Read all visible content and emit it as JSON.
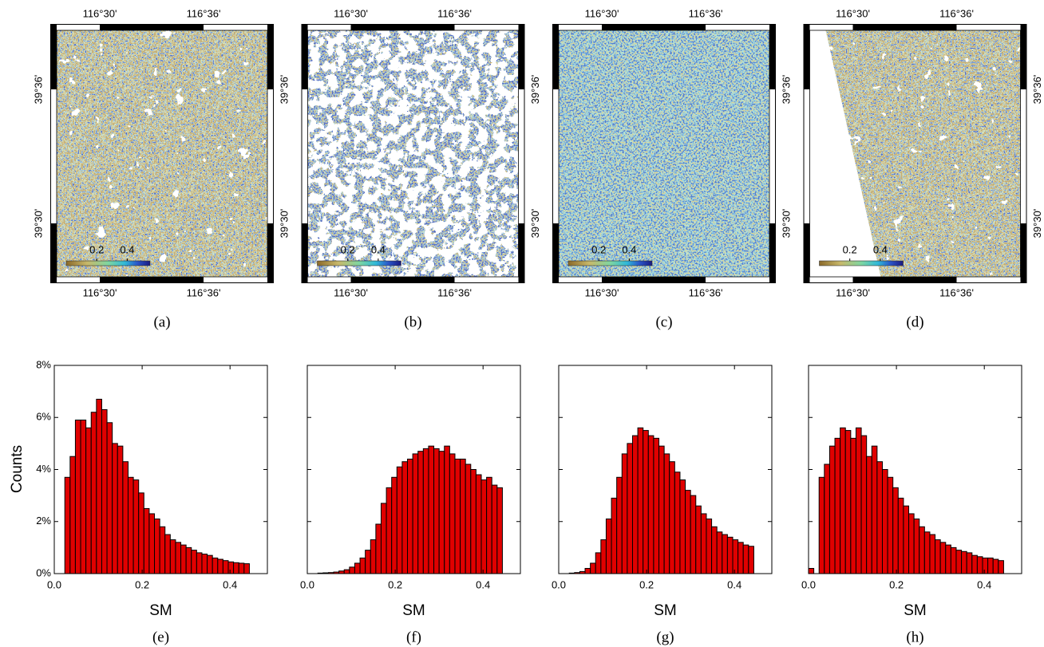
{
  "maps": [
    {
      "caption": "(a)",
      "top_labels": [
        "116°30'",
        "116°36'"
      ],
      "bottom_labels": [
        "116°30'",
        "116°36'"
      ],
      "left_labels": [
        "39°36'",
        "39°30'"
      ],
      "right_labels": [
        "39°36'",
        "39°30'"
      ],
      "colorbar_lim": [
        0,
        0.55
      ],
      "colorbar_ticks": [
        0.2,
        0.4
      ]
    },
    {
      "caption": "(b)",
      "top_labels": [
        "116°30'",
        "116°36'"
      ],
      "bottom_labels": [
        "116°30'",
        "116°36'"
      ],
      "right_labels": [
        "39°36'",
        "39°30'"
      ],
      "colorbar_lim": [
        0,
        0.55
      ],
      "colorbar_ticks": [
        0.2,
        0.4
      ]
    },
    {
      "caption": "(c)",
      "top_labels": [
        "116°30'",
        "116°36'"
      ],
      "bottom_labels": [
        "116°30'",
        "116°36'"
      ],
      "right_labels": [
        "39°36'",
        "39°30'"
      ],
      "colorbar_lim": [
        0,
        0.55
      ],
      "colorbar_ticks": [
        0.2,
        0.4
      ]
    },
    {
      "caption": "(d)",
      "top_labels": [
        "116°30'",
        "116°36'"
      ],
      "bottom_labels": [
        "116°30'",
        "116°36'"
      ],
      "right_labels": [
        "39°36'",
        "39°30'"
      ],
      "colorbar_lim": [
        0,
        0.55
      ],
      "colorbar_ticks": [
        0.2,
        0.4
      ]
    }
  ],
  "chart_data": [
    {
      "type": "histogram",
      "caption": "(e)",
      "x_label": "SM",
      "y_label": "Counts",
      "color": "#e00000",
      "bins": [
        0.024,
        0.036,
        0.048,
        0.06,
        0.072,
        0.084,
        0.096,
        0.108,
        0.12,
        0.132,
        0.144,
        0.156,
        0.168,
        0.18,
        0.192,
        0.204,
        0.216,
        0.228,
        0.24,
        0.252,
        0.264,
        0.276,
        0.288,
        0.3,
        0.312,
        0.324,
        0.336,
        0.348,
        0.36,
        0.372,
        0.384,
        0.396,
        0.408,
        0.42,
        0.432,
        0.444
      ],
      "values": [
        3.7,
        4.5,
        5.9,
        5.9,
        5.6,
        6.2,
        6.7,
        6.3,
        5.8,
        5.0,
        4.9,
        4.3,
        3.7,
        3.6,
        3.1,
        2.5,
        2.3,
        2.1,
        1.8,
        1.5,
        1.3,
        1.2,
        1.1,
        1.0,
        0.9,
        0.8,
        0.75,
        0.7,
        0.6,
        0.55,
        0.5,
        0.45,
        0.42,
        0.4,
        0.38
      ],
      "xlim": [
        0,
        0.485
      ],
      "xticks": [
        {
          "value": 0,
          "label": "0.0"
        },
        0.2,
        0.4
      ],
      "ylim": [
        0,
        8
      ],
      "yticks": [
        {
          "value": 0,
          "label": "0%"
        },
        {
          "value": 2,
          "label": "2%"
        },
        {
          "value": 4,
          "label": "4%"
        },
        {
          "value": 6,
          "label": "6%"
        },
        {
          "value": 8,
          "label": "8%"
        }
      ],
      "ytick_labels": true
    },
    {
      "type": "histogram",
      "caption": "(f)",
      "x_label": "SM",
      "color": "#e00000",
      "bins": [
        0.024,
        0.036,
        0.048,
        0.06,
        0.072,
        0.084,
        0.096,
        0.108,
        0.12,
        0.132,
        0.144,
        0.156,
        0.168,
        0.18,
        0.192,
        0.204,
        0.216,
        0.228,
        0.24,
        0.252,
        0.264,
        0.276,
        0.288,
        0.3,
        0.312,
        0.324,
        0.336,
        0.348,
        0.36,
        0.372,
        0.384,
        0.396,
        0.408,
        0.42,
        0.432,
        0.444
      ],
      "values": [
        0.02,
        0.03,
        0.04,
        0.06,
        0.1,
        0.15,
        0.25,
        0.4,
        0.6,
        0.9,
        1.3,
        1.9,
        2.7,
        3.3,
        3.7,
        4.1,
        4.3,
        4.4,
        4.6,
        4.7,
        4.8,
        4.9,
        4.8,
        4.7,
        4.9,
        4.6,
        4.4,
        4.4,
        4.2,
        4.0,
        3.8,
        3.6,
        3.7,
        3.4,
        3.3
      ],
      "xlim": [
        0,
        0.485
      ],
      "xticks": [
        {
          "value": 0,
          "label": "0.0"
        },
        0.2,
        0.4
      ],
      "ylim": [
        0,
        8
      ],
      "yticks": [
        0,
        2,
        4,
        6,
        8
      ],
      "ytick_labels": false
    },
    {
      "type": "histogram",
      "caption": "(g)",
      "x_label": "SM",
      "color": "#e00000",
      "bins": [
        0.024,
        0.036,
        0.048,
        0.06,
        0.072,
        0.084,
        0.096,
        0.108,
        0.12,
        0.132,
        0.144,
        0.156,
        0.168,
        0.18,
        0.192,
        0.204,
        0.216,
        0.228,
        0.24,
        0.252,
        0.264,
        0.276,
        0.288,
        0.3,
        0.312,
        0.324,
        0.336,
        0.348,
        0.36,
        0.372,
        0.384,
        0.396,
        0.408,
        0.42,
        0.432,
        0.444
      ],
      "values": [
        0.02,
        0.04,
        0.08,
        0.2,
        0.4,
        0.8,
        1.3,
        2.1,
        2.9,
        3.7,
        4.6,
        5.0,
        5.3,
        5.6,
        5.5,
        5.3,
        5.2,
        4.9,
        4.6,
        4.3,
        3.9,
        3.6,
        3.2,
        3.0,
        2.6,
        2.3,
        2.1,
        1.8,
        1.6,
        1.5,
        1.4,
        1.3,
        1.2,
        1.1,
        1.05
      ],
      "xlim": [
        0,
        0.485
      ],
      "xticks": [
        {
          "value": 0,
          "label": "0.0"
        },
        0.2,
        0.4
      ],
      "ylim": [
        0,
        8
      ],
      "yticks": [
        0,
        2,
        4,
        6,
        8
      ],
      "ytick_labels": false
    },
    {
      "type": "histogram",
      "caption": "(h)",
      "x_label": "SM",
      "color": "#e00000",
      "bins": [
        0,
        0.012,
        0.024,
        0.036,
        0.048,
        0.06,
        0.072,
        0.084,
        0.096,
        0.108,
        0.12,
        0.132,
        0.144,
        0.156,
        0.168,
        0.18,
        0.192,
        0.204,
        0.216,
        0.228,
        0.24,
        0.252,
        0.264,
        0.276,
        0.288,
        0.3,
        0.312,
        0.324,
        0.336,
        0.348,
        0.36,
        0.372,
        0.384,
        0.396,
        0.408,
        0.42,
        0.432,
        0.444
      ],
      "values": [
        0.2,
        0,
        3.7,
        4.2,
        4.9,
        5.2,
        5.6,
        5.5,
        5.2,
        5.6,
        5.3,
        4.5,
        4.9,
        4.3,
        4.0,
        3.7,
        3.3,
        2.9,
        2.6,
        2.3,
        2.1,
        1.8,
        1.6,
        1.5,
        1.3,
        1.2,
        1.1,
        1.0,
        0.9,
        0.85,
        0.8,
        0.7,
        0.65,
        0.6,
        0.6,
        0.55,
        0.5
      ],
      "xlim": [
        0,
        0.485
      ],
      "xticks": [
        {
          "value": 0,
          "label": "0.0"
        },
        0.2,
        0.4
      ],
      "ylim": [
        0,
        8
      ],
      "yticks": [
        0,
        2,
        4,
        6,
        8
      ],
      "ytick_labels": false
    }
  ]
}
